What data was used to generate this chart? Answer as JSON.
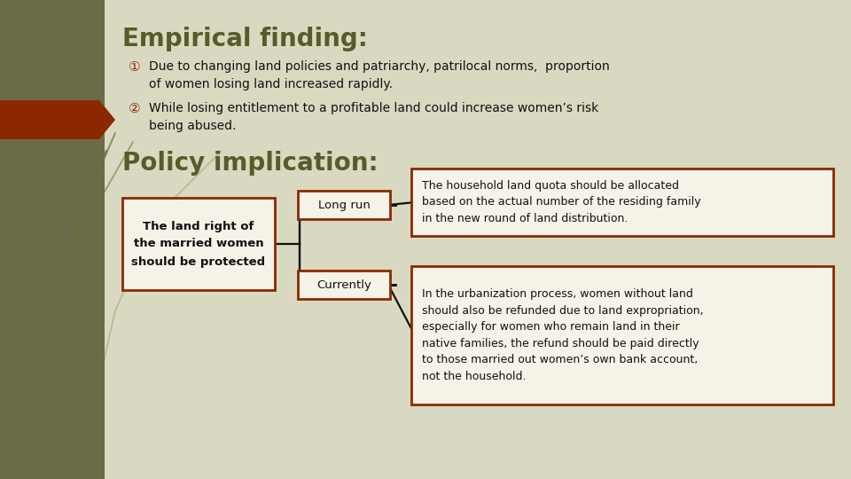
{
  "bg_color": "#d8d9c0",
  "left_bar_color": "#6b6b4a",
  "title": "Empirical finding:",
  "title_color": "#5a5a2a",
  "title_fontsize": 20,
  "point1_num": "①",
  "point1_text": "Due to changing land policies and patriarchy, patrilocal norms,  proportion\nof women losing land increased rapidly.",
  "point2_num": "②",
  "point2_text": "While losing entitlement to a profitable land could increase women’s risk\nbeing abused.",
  "policy_title": "Policy implication:",
  "policy_title_color": "#5a5a2a",
  "policy_title_fontsize": 20,
  "left_box_text": "The land right of\nthe married women\nshould be protected",
  "mid_box1_text": "Long run",
  "mid_box2_text": "Currently",
  "right_box1_text": "The household land quota should be allocated\nbased on the actual number of the residing family\nin the new round of land distribution.",
  "right_box2_text": "In the urbanization process, women without land\nshould also be refunded due to land expropriation,\nespecially for women who remain land in their\nnative families, the refund should be paid directly\nto those married out women’s own bank account,\nnot the household.",
  "box_edge_color": "#8b2800",
  "box_face_color": "#f5f2e8",
  "box_text_color": "#111111",
  "line_color": "#111111",
  "dark_red_color": "#8b2800",
  "grass_color": "#6b6b3a",
  "text_color": "#111111",
  "num_color": "#8b2800"
}
